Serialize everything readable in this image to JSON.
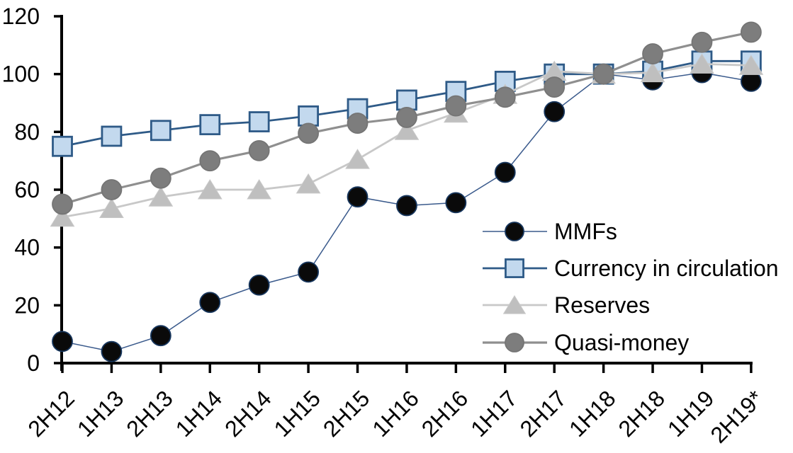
{
  "chart_data": {
    "type": "line",
    "title": "",
    "xlabel": "",
    "ylabel": "",
    "ylim": [
      0,
      120
    ],
    "yticks": [
      0,
      20,
      40,
      60,
      80,
      100,
      120
    ],
    "grid": false,
    "legend_position": "inside-right",
    "categories": [
      "2H12",
      "1H13",
      "2H13",
      "1H14",
      "2H14",
      "1H15",
      "2H15",
      "1H16",
      "2H16",
      "1H17",
      "2H17",
      "1H18",
      "2H18",
      "1H19",
      "2H19*"
    ],
    "series": [
      {
        "name": "MMFs",
        "marker": "circle",
        "marker_fill": "#0a0a0a",
        "marker_stroke": "#17365d",
        "line_color": "#3a5a8c",
        "line_width": 1.5,
        "values": [
          7.5,
          4,
          9.5,
          21,
          27,
          31.5,
          57.5,
          54.5,
          55.5,
          66,
          87,
          100,
          98,
          100.5,
          97.5
        ]
      },
      {
        "name": "Currency in circulation",
        "marker": "square",
        "marker_fill": "#c3d9ee",
        "marker_stroke": "#2e5a87",
        "line_color": "#2e5a87",
        "line_width": 2.8,
        "values": [
          75,
          78.5,
          80.5,
          82.5,
          83.5,
          85.5,
          88,
          91,
          94,
          97.5,
          100,
          100,
          101,
          104.5,
          104.5
        ]
      },
      {
        "name": "Reserves",
        "marker": "triangle",
        "marker_fill": "#bfbfbf",
        "marker_stroke": "#c8c8c8",
        "line_color": "#c8c8c8",
        "line_width": 2.8,
        "values": [
          50.5,
          53.5,
          57.5,
          60,
          60,
          62,
          70.5,
          80.5,
          86.5,
          93,
          101,
          100,
          100.5,
          103.5,
          103
        ]
      },
      {
        "name": "Quasi-money",
        "marker": "circle",
        "marker_fill": "#7d7d7d",
        "marker_stroke": "#757575",
        "line_color": "#8f8f8f",
        "line_width": 3.2,
        "values": [
          55,
          60,
          64,
          70,
          73.5,
          79.5,
          83,
          85,
          89,
          92,
          95.5,
          100,
          107,
          111,
          114.5
        ]
      }
    ],
    "axis_color": "#000000"
  }
}
